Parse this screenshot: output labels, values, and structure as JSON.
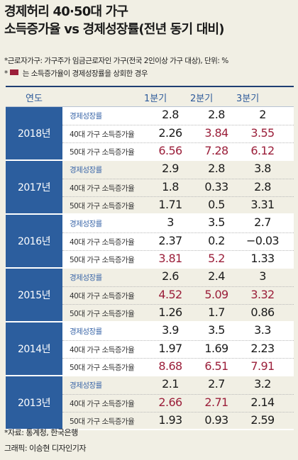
{
  "title_line1": "경제허리 40·50대 가구",
  "title_line2": "소득증가율 vs 경제성장률(전년 동기 대비)",
  "note1": "*근로자가구: 가구주가 임금근로자인 가구(전국 2인이상 가구 대상), 단위: %",
  "note2_star": "*",
  "note2_text": "는 소득증가율이 경제성장률을 상회한 경우",
  "highlight_color": "#9b1f3a",
  "header_color": "#2c5e9e",
  "source": "*자료: 통계청, 한국은행",
  "credit": "그래픽: 이승현 디자인기자",
  "chart_data": {
    "type": "table",
    "columns": [
      "연도",
      "1분기",
      "2분기",
      "3분기"
    ],
    "groups": [
      {
        "year": "2018년",
        "rows": [
          {
            "label": "경제성장률",
            "values": [
              "2.8",
              "2.8",
              "2"
            ],
            "over": [
              false,
              false,
              false
            ]
          },
          {
            "label": "40대 가구 소득증가율",
            "values": [
              "2.26",
              "3.84",
              "3.55"
            ],
            "over": [
              false,
              true,
              true
            ]
          },
          {
            "label": "50대 가구 소득증가율",
            "values": [
              "6.56",
              "7.28",
              "6.12"
            ],
            "over": [
              true,
              true,
              true
            ]
          }
        ]
      },
      {
        "year": "2017년",
        "rows": [
          {
            "label": "경제성장률",
            "values": [
              "2.9",
              "2.8",
              "3.8"
            ],
            "over": [
              false,
              false,
              false
            ]
          },
          {
            "label": "40대 가구 소득증가율",
            "values": [
              "1.8",
              "0.33",
              "2.8"
            ],
            "over": [
              false,
              false,
              false
            ]
          },
          {
            "label": "50대 가구 소득증가율",
            "values": [
              "1.71",
              "0.5",
              "3.31"
            ],
            "over": [
              false,
              false,
              false
            ]
          }
        ]
      },
      {
        "year": "2016년",
        "rows": [
          {
            "label": "경제성장률",
            "values": [
              "3",
              "3.5",
              "2.7"
            ],
            "over": [
              false,
              false,
              false
            ]
          },
          {
            "label": "40대 가구 소득증가율",
            "values": [
              "2.37",
              "0.2",
              "−0.03"
            ],
            "over": [
              false,
              false,
              false
            ]
          },
          {
            "label": "50대 가구 소득증가율",
            "values": [
              "3.81",
              "5.2",
              "1.33"
            ],
            "over": [
              true,
              true,
              false
            ]
          }
        ]
      },
      {
        "year": "2015년",
        "rows": [
          {
            "label": "경제성장률",
            "values": [
              "2.6",
              "2.4",
              "3"
            ],
            "over": [
              false,
              false,
              false
            ]
          },
          {
            "label": "40대 가구 소득증가율",
            "values": [
              "4.52",
              "5.09",
              "3.32"
            ],
            "over": [
              true,
              true,
              true
            ]
          },
          {
            "label": "50대 가구 소득증가율",
            "values": [
              "1.26",
              "1.7",
              "0.86"
            ],
            "over": [
              false,
              false,
              false
            ]
          }
        ]
      },
      {
        "year": "2014년",
        "rows": [
          {
            "label": "경제성장률",
            "values": [
              "3.9",
              "3.5",
              "3.3"
            ],
            "over": [
              false,
              false,
              false
            ]
          },
          {
            "label": "40대 가구 소득증가율",
            "values": [
              "1.97",
              "1.69",
              "2.23"
            ],
            "over": [
              false,
              false,
              false
            ]
          },
          {
            "label": "50대 가구 소득증가율",
            "values": [
              "8.68",
              "6.51",
              "7.91"
            ],
            "over": [
              true,
              true,
              true
            ]
          }
        ]
      },
      {
        "year": "2013년",
        "rows": [
          {
            "label": "경제성장률",
            "values": [
              "2.1",
              "2.7",
              "3.2"
            ],
            "over": [
              false,
              false,
              false
            ]
          },
          {
            "label": "40대 가구 소득증가율",
            "values": [
              "2.66",
              "2.71",
              "2.14"
            ],
            "over": [
              true,
              true,
              false
            ]
          },
          {
            "label": "50대 가구 소득증가율",
            "values": [
              "1.93",
              "0.93",
              "2.59"
            ],
            "over": [
              false,
              false,
              false
            ]
          }
        ]
      }
    ]
  }
}
